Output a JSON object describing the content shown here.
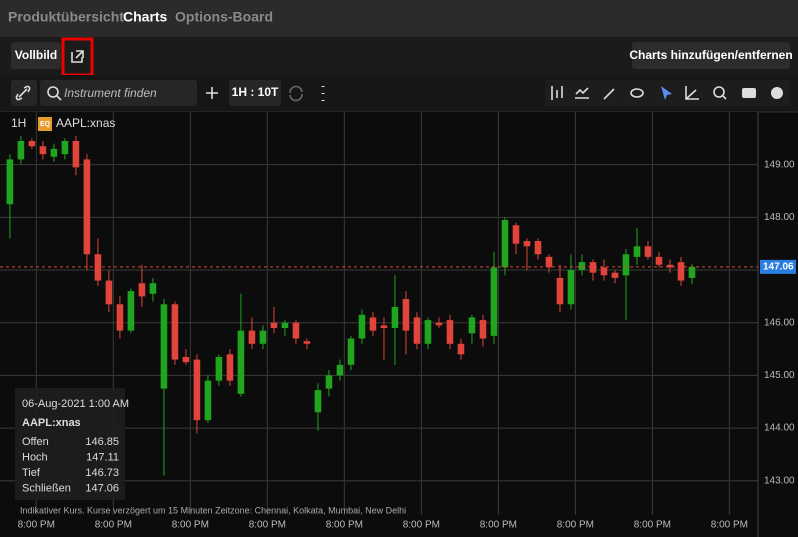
{
  "nav": {
    "tabs": [
      "Produktübersicht",
      "Charts",
      "Options-Board"
    ]
  },
  "toolbar": {
    "fullscreen": "Vollbild",
    "manage": "Charts hinzufügen/entfernen",
    "search_placeholder": "Instrument finden",
    "interval": "1H : 10T"
  },
  "chart_data": {
    "type": "candlestick",
    "interval": "1H",
    "instrument_badge": "EQ",
    "instrument": "AAPL:xnas",
    "open": [
      148.25,
      149.1,
      149.45,
      149.35,
      149.15,
      149.2,
      149.45,
      149.1,
      147.3,
      146.8,
      146.35,
      145.85,
      146.75,
      146.55,
      144.75,
      146.35,
      145.35,
      145.3,
      144.15,
      144.9,
      145.4,
      144.65,
      145.85,
      145.6,
      146.0,
      145.9,
      146.0,
      145.65,
      144.3,
      144.75,
      145.0,
      145.2,
      145.7,
      146.1,
      145.95,
      145.9,
      146.45,
      146.1,
      145.6,
      146.0,
      146.05,
      145.6,
      145.8,
      146.05,
      145.75,
      147.05,
      147.85,
      147.55,
      147.55,
      147.25,
      146.85,
      146.35,
      147.0,
      147.15,
      147.05,
      146.95,
      146.9,
      147.25,
      147.45,
      147.25,
      147.1,
      147.15,
      146.85
    ],
    "high": [
      149.2,
      149.55,
      149.5,
      149.45,
      149.4,
      149.5,
      149.55,
      149.2,
      147.6,
      147.0,
      146.5,
      146.65,
      147.1,
      146.85,
      146.45,
      146.4,
      145.5,
      145.4,
      145.0,
      145.4,
      145.5,
      146.55,
      146.1,
      145.95,
      146.3,
      146.05,
      146.05,
      145.7,
      144.85,
      145.1,
      145.3,
      145.75,
      146.25,
      146.2,
      146.1,
      146.9,
      146.6,
      146.2,
      146.1,
      146.1,
      146.15,
      145.7,
      146.15,
      146.15,
      147.35,
      148.0,
      147.9,
      147.6,
      147.6,
      147.3,
      147.1,
      147.3,
      147.3,
      147.2,
      147.2,
      147.0,
      147.4,
      147.8,
      147.55,
      147.35,
      147.2,
      147.25,
      147.11
    ],
    "low": [
      147.6,
      149.0,
      149.3,
      149.1,
      149.05,
      149.1,
      148.8,
      147.0,
      146.7,
      146.2,
      145.7,
      145.8,
      146.3,
      146.4,
      143.1,
      145.2,
      145.2,
      143.9,
      144.1,
      144.8,
      144.8,
      144.6,
      145.5,
      145.5,
      145.8,
      145.75,
      145.6,
      145.5,
      143.95,
      144.6,
      144.9,
      145.1,
      145.6,
      145.75,
      145.3,
      145.2,
      145.4,
      145.5,
      145.5,
      145.9,
      145.5,
      145.3,
      145.6,
      145.55,
      145.6,
      146.9,
      147.3,
      147.0,
      147.2,
      146.95,
      146.2,
      146.25,
      146.9,
      146.8,
      146.8,
      146.75,
      146.05,
      147.1,
      147.2,
      147.05,
      146.95,
      146.7,
      146.73
    ],
    "close": [
      149.1,
      149.45,
      149.35,
      149.2,
      149.3,
      149.45,
      148.95,
      147.3,
      146.8,
      146.35,
      145.85,
      146.6,
      146.5,
      146.75,
      146.35,
      145.3,
      145.25,
      144.15,
      144.9,
      145.35,
      144.9,
      145.85,
      145.6,
      145.85,
      145.9,
      146.0,
      145.7,
      145.6,
      144.72,
      145.0,
      145.2,
      145.7,
      146.15,
      145.85,
      145.9,
      146.3,
      145.85,
      145.6,
      146.05,
      145.95,
      145.6,
      145.4,
      146.1,
      145.7,
      147.05,
      147.95,
      147.5,
      147.45,
      147.3,
      147.05,
      146.35,
      147.0,
      147.15,
      146.95,
      146.9,
      146.85,
      147.3,
      147.45,
      147.25,
      147.1,
      147.05,
      146.8,
      147.06
    ],
    "up_color": "#1fa51f",
    "down_color": "#e0443a",
    "grid": true,
    "ylim": [
      142.35,
      150.0
    ],
    "yticks": [
      {
        "value": 143,
        "label": "143.00"
      },
      {
        "value": 144,
        "label": "144.00"
      },
      {
        "value": 145,
        "label": "145.00"
      },
      {
        "value": 146,
        "label": "146.00"
      },
      {
        "value": 147,
        "label": "147.00"
      },
      {
        "value": 148,
        "label": "148.00"
      },
      {
        "value": 149,
        "label": "149.00"
      }
    ],
    "xlim": [
      -0.9,
      68
    ],
    "xticks": [
      {
        "value": 2.4,
        "label": "8:00 PM"
      },
      {
        "value": 9.4,
        "label": "8:00 PM"
      },
      {
        "value": 16.4,
        "label": "8:00 PM"
      },
      {
        "value": 23.4,
        "label": "8:00 PM"
      },
      {
        "value": 30.4,
        "label": "8:00 PM"
      },
      {
        "value": 37.4,
        "label": "8:00 PM"
      },
      {
        "value": 44.4,
        "label": "8:00 PM"
      },
      {
        "value": 51.4,
        "label": "8:00 PM"
      },
      {
        "value": 58.4,
        "label": "8:00 PM"
      },
      {
        "value": 65.4,
        "label": "8:00 PM"
      }
    ],
    "last_price": 147.06
  },
  "info_box": {
    "datetime": "06-Aug-2021 1:00 AM",
    "instrument": "AAPL:xnas",
    "rows": [
      [
        "Offen",
        146.85
      ],
      [
        "Hoch",
        147.11
      ],
      [
        "Tief",
        146.73
      ],
      [
        "Schließen",
        147.06
      ]
    ]
  },
  "footnote": "Indikativer Kurs. Kurse verzögert um 15 Minuten   Zeitzone: Chennai, Kolkata, Mumbai, New Delhi"
}
